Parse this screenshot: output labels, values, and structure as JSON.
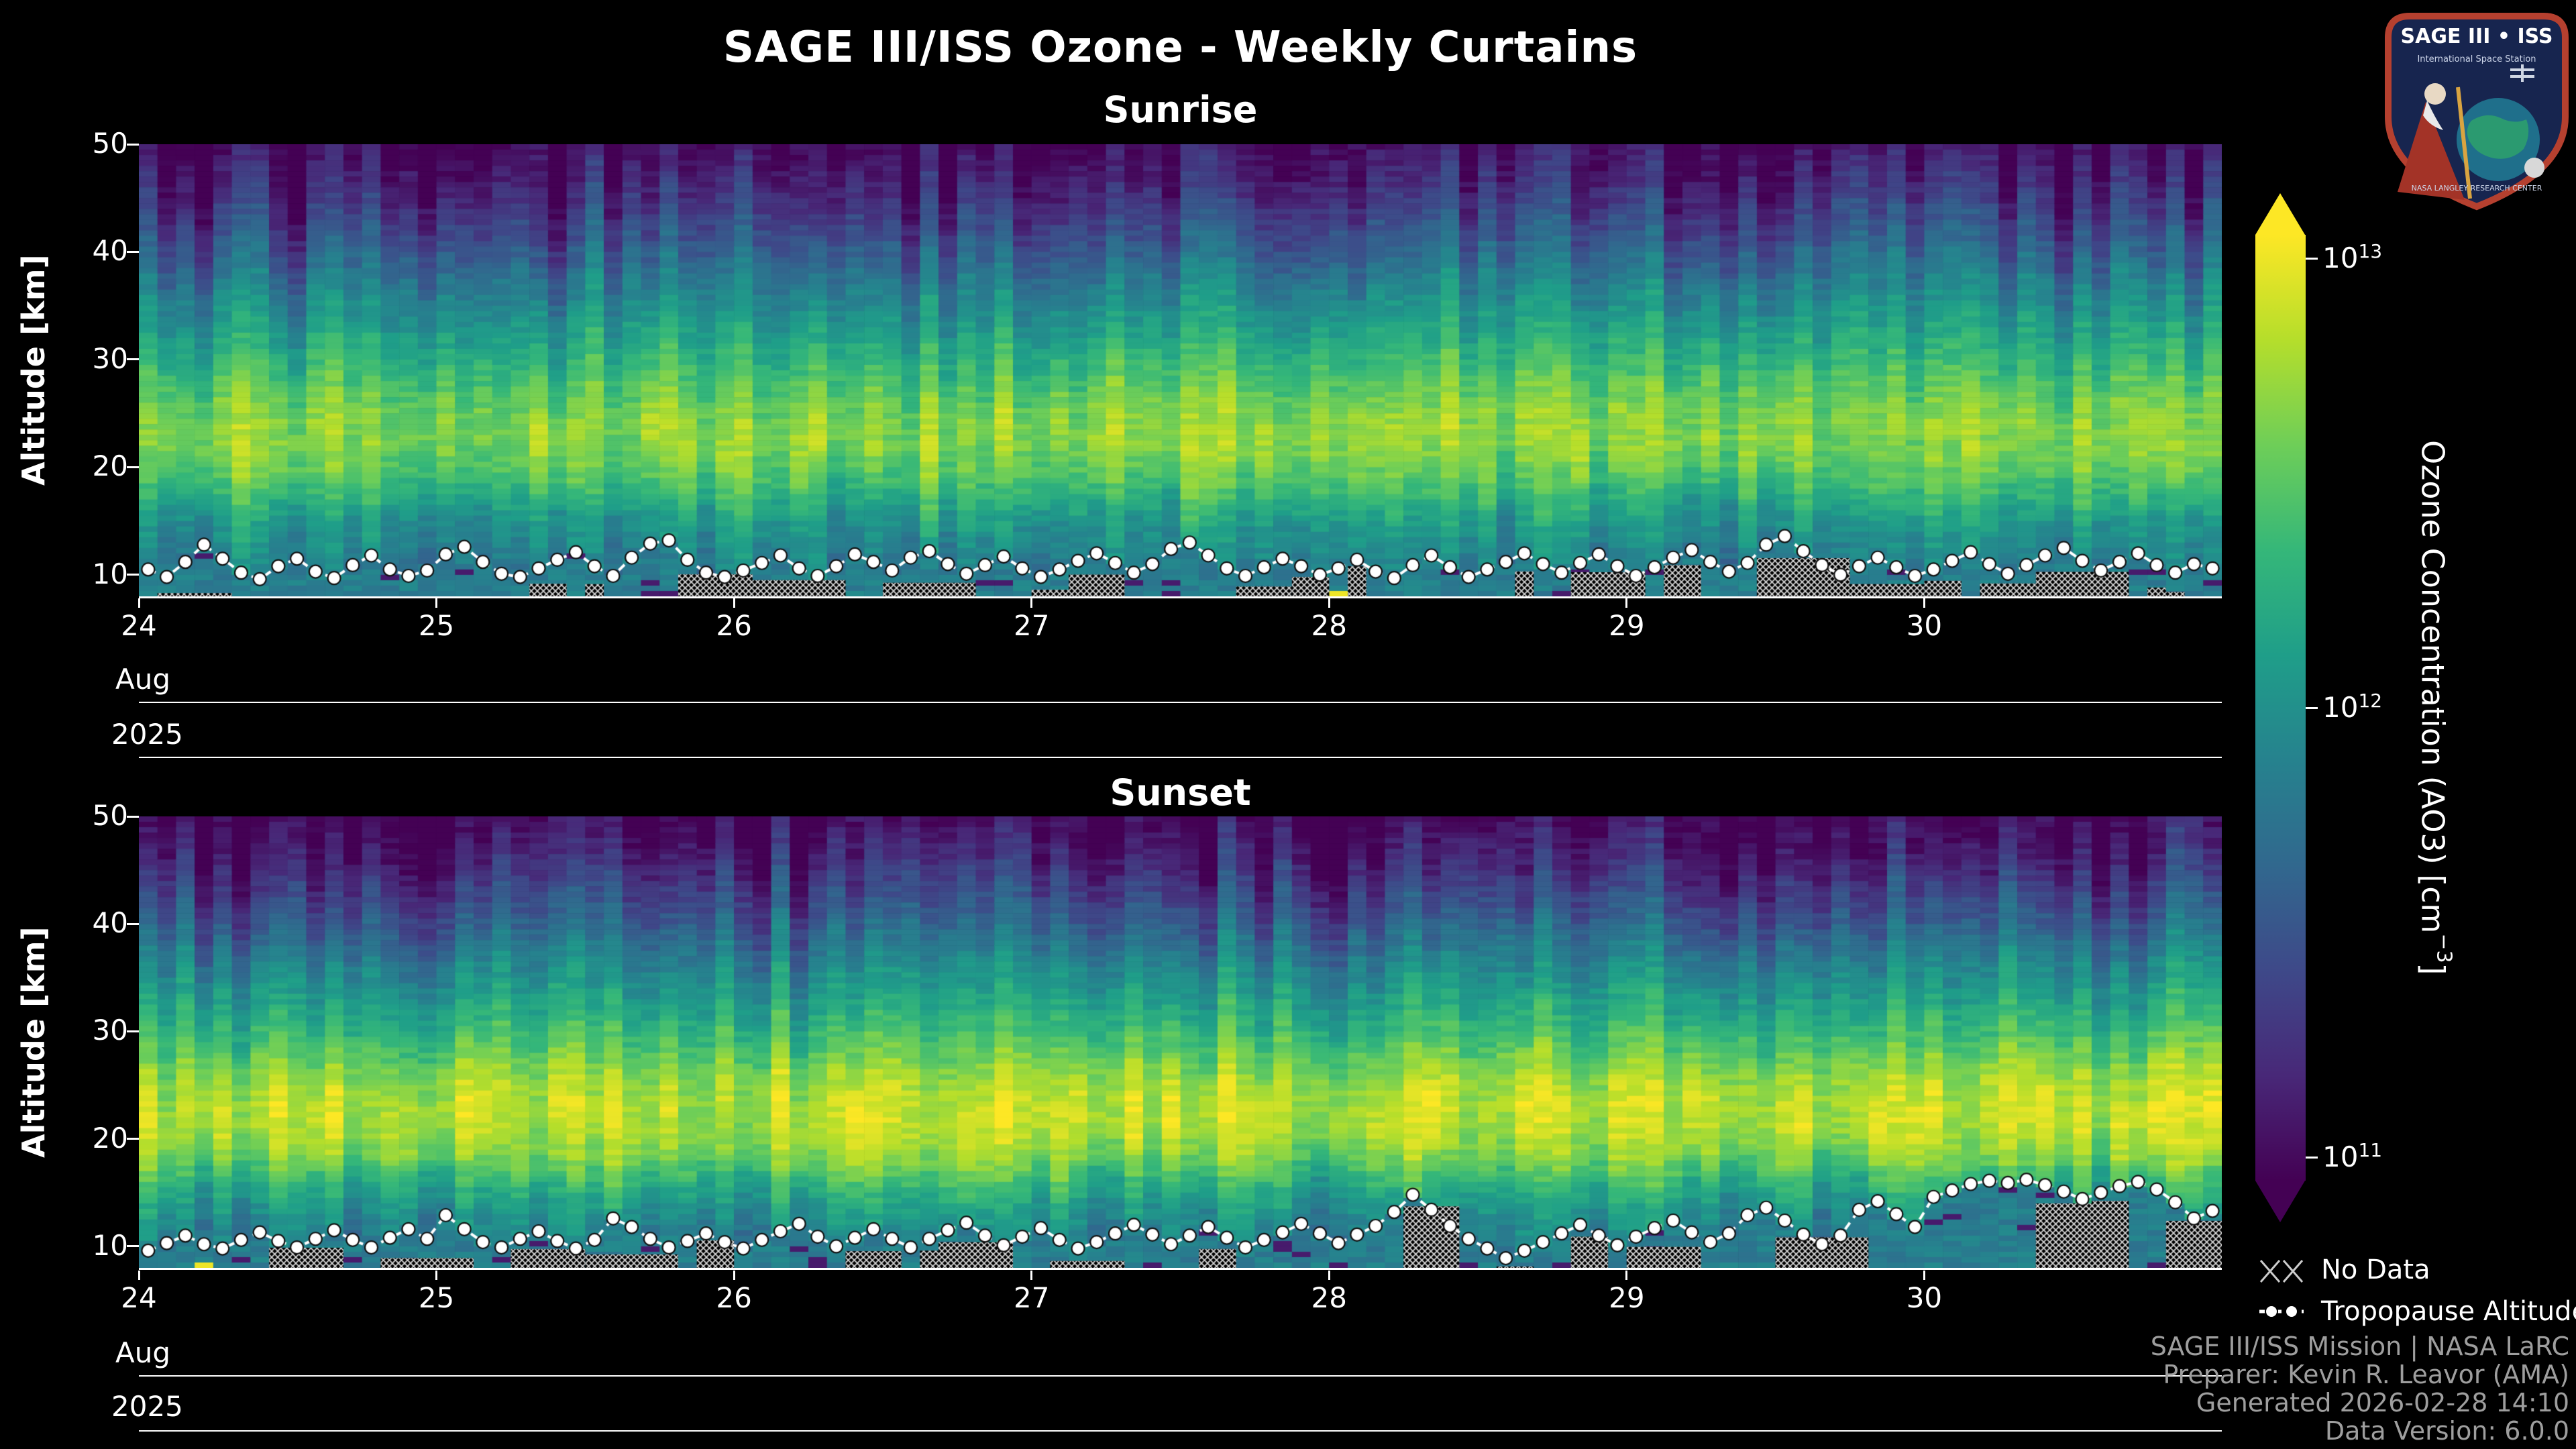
{
  "page": {
    "background": "#000000"
  },
  "header": {
    "title": "SAGE III/ISS Ozone - Weekly Curtains"
  },
  "logo": {
    "title": "SAGE III • ISS",
    "subtitle": "International Space Station",
    "footer": "NASA LANGLEY RESEARCH CENTER"
  },
  "colorbar": {
    "base": "10",
    "ticks": [
      {
        "exp": "13",
        "value": 10000000000000.0
      },
      {
        "exp": "12",
        "value": 1000000000000.0
      },
      {
        "exp": "11",
        "value": 100000000000.0
      }
    ],
    "title_parts": {
      "pre": "Ozone Concentration (AO3) [cm",
      "sup": "−3",
      "post": "]"
    },
    "scale": {
      "type": "log",
      "min": 100000000000.0,
      "max": 10000000000000.0
    }
  },
  "colormap": {
    "name": "viridis",
    "stops": [
      "#440154",
      "#482878",
      "#3e4989",
      "#31688e",
      "#26828e",
      "#1f9e89",
      "#35b779",
      "#6ece58",
      "#b5de2b",
      "#fde725"
    ]
  },
  "legend": {
    "no_data": "No Data",
    "tropopause": "Tropopause Altitude"
  },
  "credits": {
    "lines": [
      "SAGE III/ISS Mission | NASA LaRC",
      "Preparer: Kevin R. Leavor (AMA)",
      "Generated 2026-02-28 14:10",
      "Data Version: 6.0.0"
    ]
  },
  "chart_data": [
    {
      "type": "heatmap",
      "title": "Sunrise",
      "ylabel": "Altitude [km]",
      "xlabel_month": "Aug",
      "xlabel_year": "2025",
      "x_ticks": [
        "24",
        "25",
        "26",
        "27",
        "28",
        "29",
        "30"
      ],
      "xlim_days": [
        24,
        31
      ],
      "y_ticks": [
        10,
        20,
        30,
        40,
        50
      ],
      "ylim": [
        8,
        50
      ],
      "color_scale": {
        "type": "log",
        "min": 100000000000.0,
        "max": 10000000000000.0
      },
      "profiles_per_day": 16,
      "profile_log10": [
        [
          8,
          11.92
        ],
        [
          10,
          11.86
        ],
        [
          12,
          11.92
        ],
        [
          15,
          12.08
        ],
        [
          18,
          12.38
        ],
        [
          20,
          12.55
        ],
        [
          22,
          12.65
        ],
        [
          24,
          12.66
        ],
        [
          26,
          12.58
        ],
        [
          28,
          12.46
        ],
        [
          30,
          12.32
        ],
        [
          33,
          12.12
        ],
        [
          36,
          11.94
        ],
        [
          40,
          11.62
        ],
        [
          44,
          11.36
        ],
        [
          47,
          11.18
        ],
        [
          50,
          11.02
        ]
      ],
      "tropopause_km": [
        10.5,
        9.8,
        11.2,
        12.8,
        11.5,
        10.2,
        9.6,
        10.8,
        11.5,
        10.3,
        9.7,
        10.9,
        11.8,
        10.5,
        9.9,
        10.4,
        11.9,
        12.6,
        11.2,
        10.1,
        9.8,
        10.6,
        11.4,
        12.1,
        10.8,
        9.9,
        11.6,
        12.9,
        13.2,
        11.4,
        10.2,
        9.8,
        10.4,
        11.1,
        11.8,
        10.6,
        9.9,
        10.8,
        11.9,
        11.2,
        10.4,
        11.6,
        12.2,
        11.0,
        10.1,
        10.9,
        11.7,
        10.6,
        9.8,
        10.5,
        11.3,
        12.0,
        11.1,
        10.2,
        11.0,
        12.4,
        13.0,
        11.8,
        10.6,
        9.9,
        10.7,
        11.5,
        10.8,
        10.0,
        10.6,
        11.4,
        10.3,
        9.7,
        10.9,
        11.8,
        10.7,
        9.8,
        10.5,
        11.2,
        12.0,
        11.0,
        10.2,
        11.1,
        11.9,
        10.8,
        9.9,
        10.7,
        11.6,
        12.3,
        11.2,
        10.3,
        11.1,
        12.8,
        13.6,
        12.2,
        10.9,
        10.0,
        10.8,
        11.6,
        10.7,
        9.9,
        10.5,
        11.3,
        12.1,
        11.0,
        10.1,
        10.9,
        11.8,
        12.5,
        11.3,
        10.4,
        11.2,
        12.0,
        10.9,
        10.2,
        11.0,
        10.6
      ],
      "no_data_fraction": 0.28,
      "seed": 42
    },
    {
      "type": "heatmap",
      "title": "Sunset",
      "ylabel": "Altitude [km]",
      "xlabel_month": "Aug",
      "xlabel_year": "2025",
      "x_ticks": [
        "24",
        "25",
        "26",
        "27",
        "28",
        "29",
        "30"
      ],
      "xlim_days": [
        24,
        31
      ],
      "y_ticks": [
        10,
        20,
        30,
        40,
        50
      ],
      "ylim": [
        8,
        50
      ],
      "color_scale": {
        "type": "log",
        "min": 100000000000.0,
        "max": 10000000000000.0
      },
      "profiles_per_day": 16,
      "profile_log10": [
        [
          8,
          11.88
        ],
        [
          10,
          11.85
        ],
        [
          12,
          11.96
        ],
        [
          15,
          12.2
        ],
        [
          18,
          12.58
        ],
        [
          20,
          12.74
        ],
        [
          22,
          12.8
        ],
        [
          24,
          12.78
        ],
        [
          26,
          12.66
        ],
        [
          28,
          12.5
        ],
        [
          30,
          12.34
        ],
        [
          33,
          12.12
        ],
        [
          36,
          11.92
        ],
        [
          40,
          11.6
        ],
        [
          44,
          11.32
        ],
        [
          47,
          11.12
        ],
        [
          50,
          10.98
        ]
      ],
      "tropopause_km": [
        9.6,
        10.3,
        11.0,
        10.2,
        9.8,
        10.6,
        11.3,
        10.5,
        9.9,
        10.7,
        11.5,
        10.6,
        9.9,
        10.8,
        11.6,
        10.7,
        12.9,
        11.6,
        10.4,
        9.9,
        10.7,
        11.4,
        10.5,
        9.8,
        10.6,
        12.6,
        11.8,
        10.7,
        9.9,
        10.5,
        11.2,
        10.4,
        9.8,
        10.6,
        11.4,
        12.1,
        10.9,
        10.0,
        10.8,
        11.6,
        10.7,
        9.9,
        10.7,
        11.5,
        12.2,
        11.0,
        10.1,
        10.9,
        11.7,
        10.6,
        9.8,
        10.4,
        11.2,
        12.0,
        11.1,
        10.2,
        11.0,
        11.8,
        10.8,
        9.9,
        10.6,
        11.3,
        12.1,
        11.2,
        10.3,
        11.1,
        11.9,
        13.2,
        14.8,
        13.4,
        11.9,
        10.7,
        9.8,
        8.9,
        9.6,
        10.4,
        11.2,
        12.0,
        11.0,
        10.1,
        10.9,
        11.7,
        12.4,
        11.3,
        10.4,
        11.2,
        12.9,
        13.6,
        12.4,
        11.1,
        10.2,
        11.0,
        13.4,
        14.2,
        13.0,
        11.8,
        14.6,
        15.2,
        15.8,
        16.1,
        15.9,
        16.2,
        15.7,
        15.1,
        14.4,
        15.0,
        15.6,
        16.0,
        15.3,
        14.1,
        12.6,
        13.3
      ],
      "no_data_fraction": 0.3,
      "seed": 99
    }
  ]
}
